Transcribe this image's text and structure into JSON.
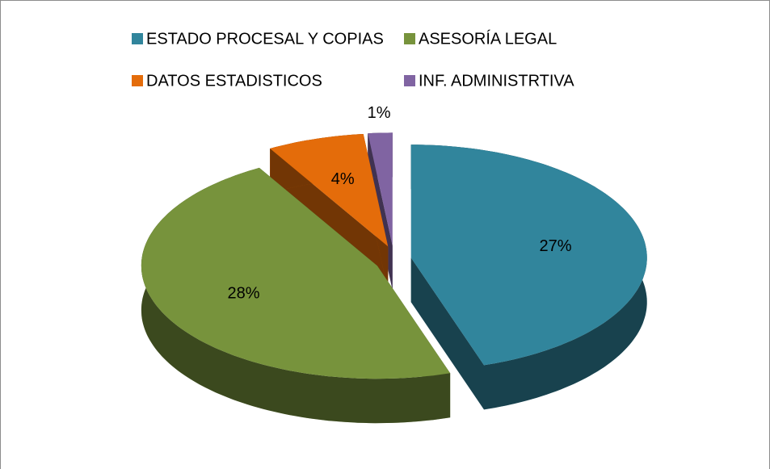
{
  "chart_data": {
    "type": "pie",
    "categories": [
      "ESTADO PROCESAL Y COPIAS",
      "ASESORÍA LEGAL",
      "DATOS ESTADISTICOS",
      "INF. ADMINISTRTIVA"
    ],
    "values": [
      27,
      28,
      4,
      1
    ],
    "value_labels": [
      "27%",
      "28%",
      "4%",
      "1%"
    ],
    "colors": [
      "#31859c",
      "#77933c",
      "#e46c0a",
      "#8064a2"
    ],
    "legend": "top"
  }
}
